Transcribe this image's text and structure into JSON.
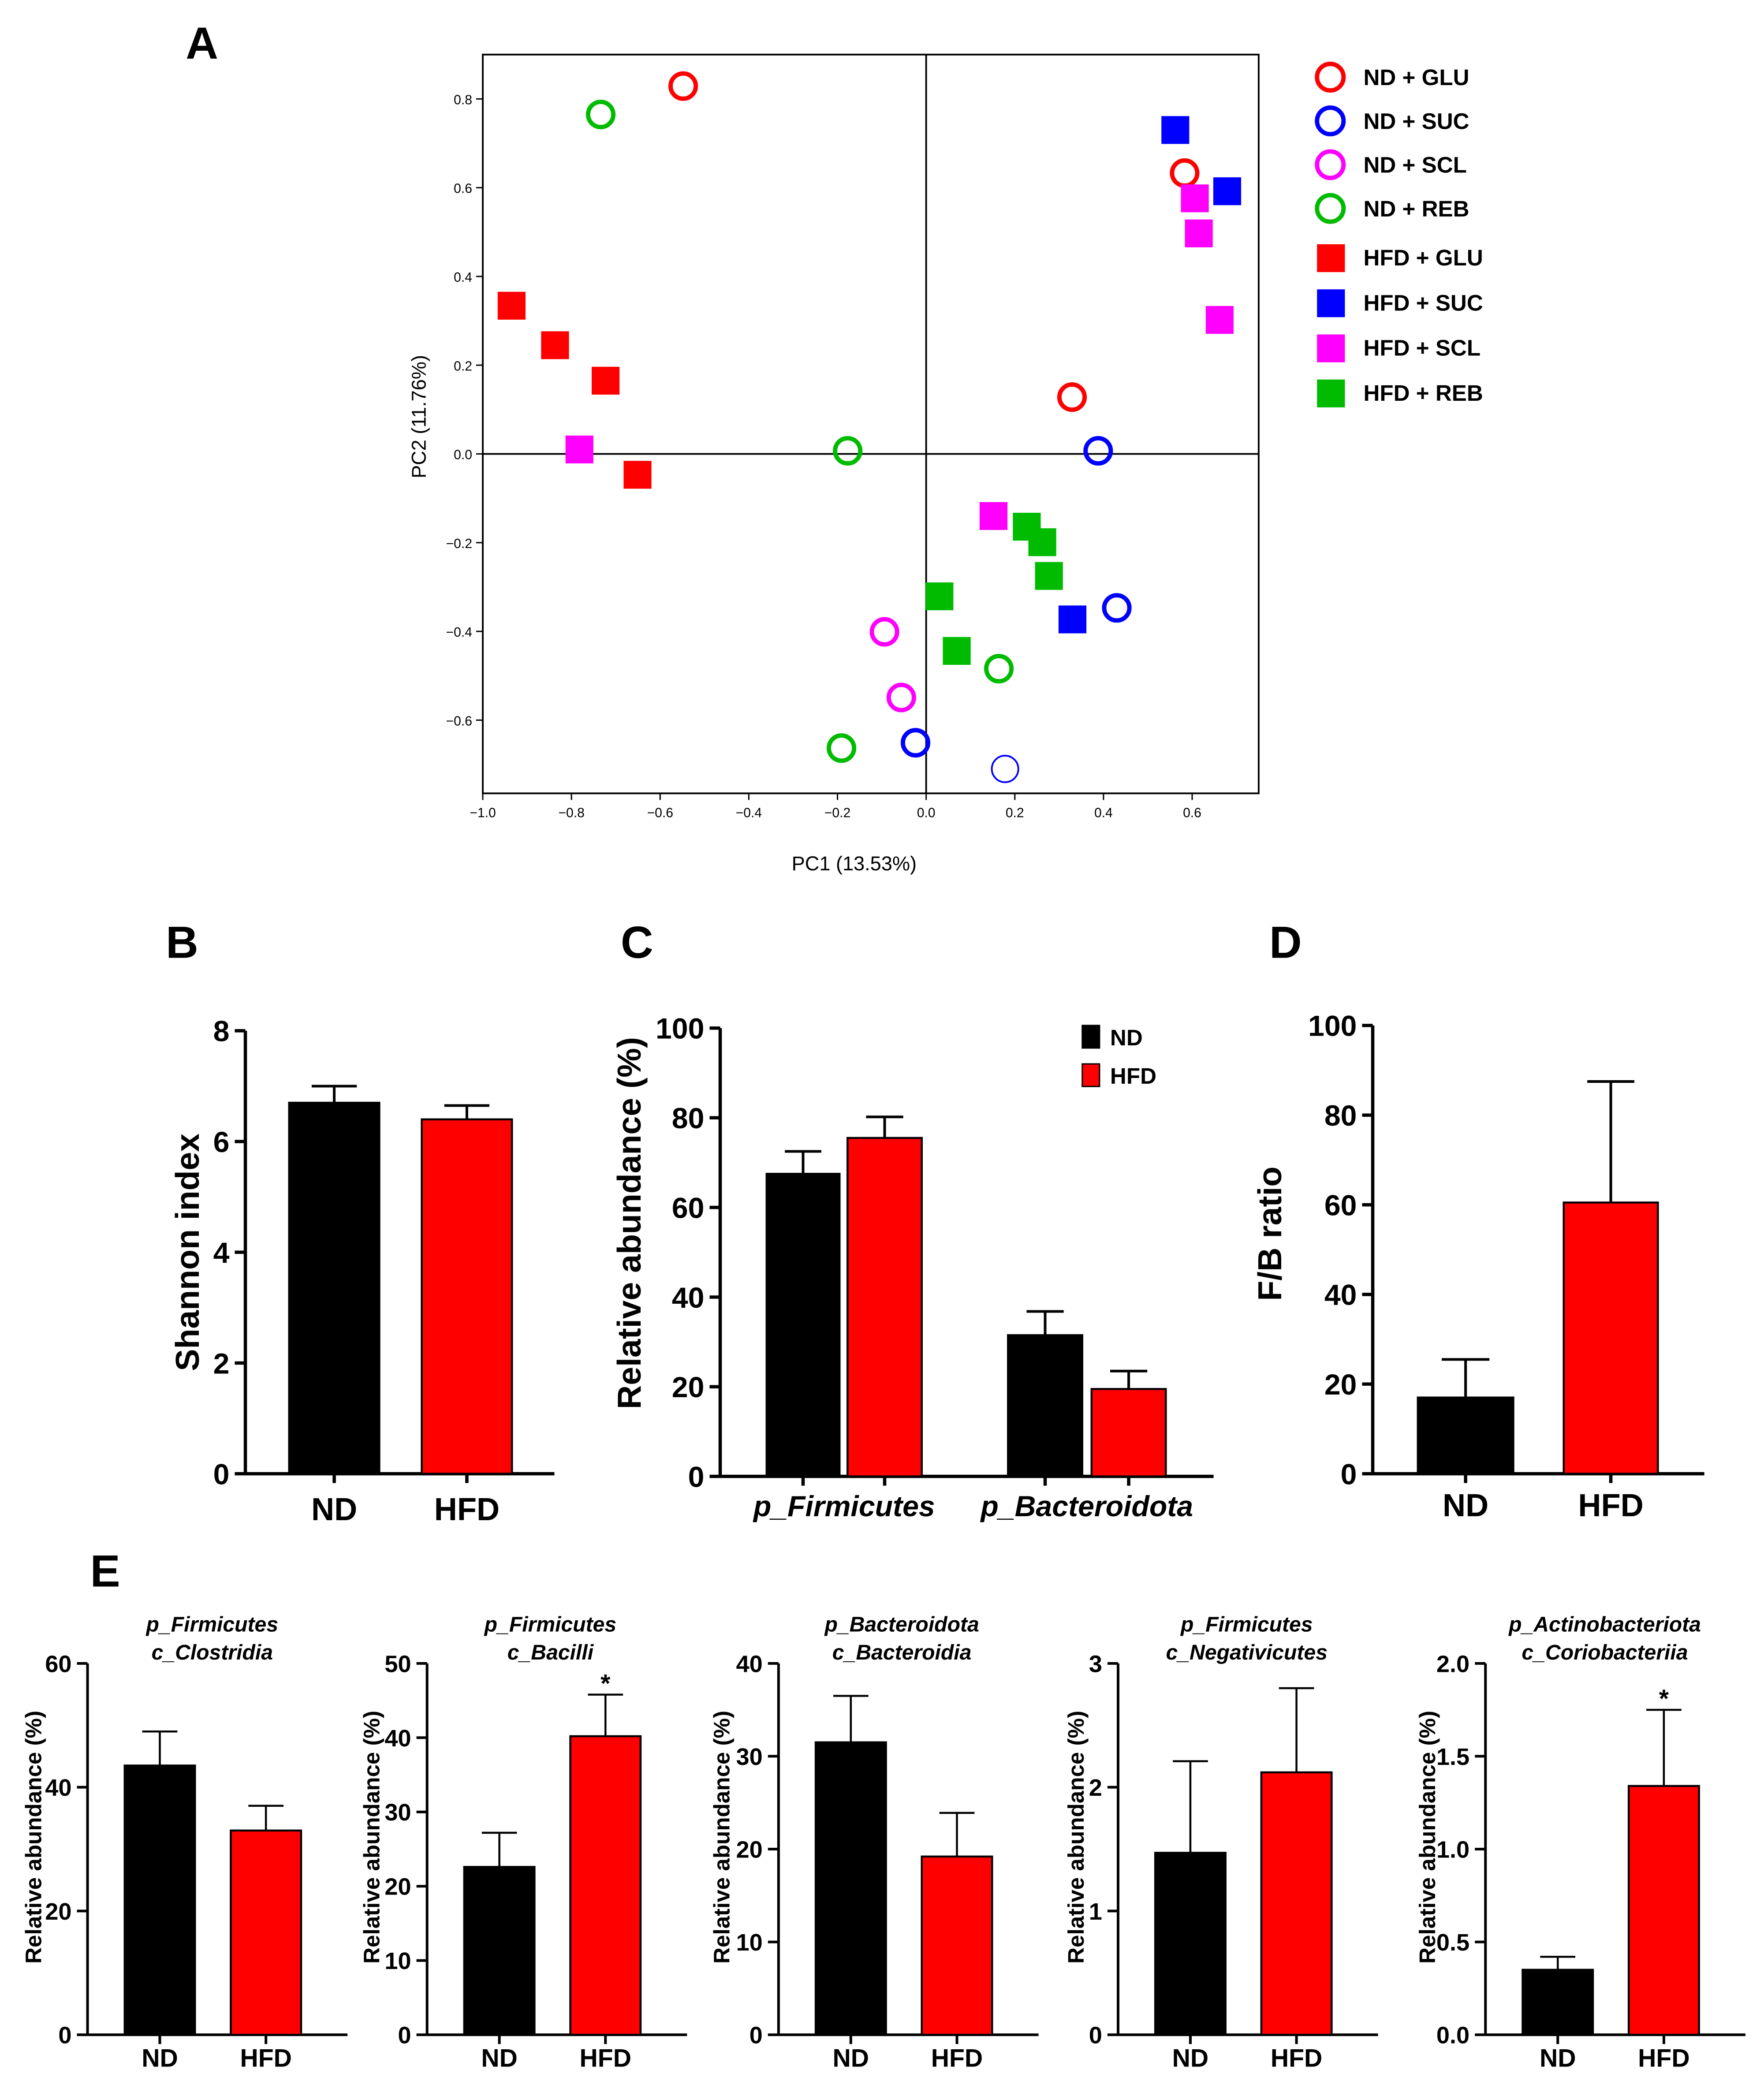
{
  "panel_letters": [
    "A",
    "B",
    "C",
    "D",
    "E"
  ],
  "chart_data": [
    {
      "panel": "A",
      "type": "scatter",
      "xlabel": "PC1 (13.53%)",
      "ylabel": "PC2 (11.76%)",
      "xlim": [
        -1.0,
        0.75
      ],
      "ylim": [
        -0.765,
        0.9
      ],
      "xticks": [
        "-1.0",
        "-0.8",
        "-0.6",
        "-0.4",
        "-0.2",
        "0.0",
        "0.2",
        "0.4",
        "0.6"
      ],
      "yticks": [
        "-0.6",
        "-0.4",
        "-0.2",
        "0.0",
        "0.2",
        "0.4",
        "0.6",
        "0.8"
      ],
      "legend": "right",
      "series": [
        {
          "name": "ND + GLU",
          "marker": "open-circle",
          "color": "#ff0000",
          "points": [
            [
              -0.548,
              0.829
            ],
            [
              0.583,
              0.633
            ],
            [
              0.329,
              0.128
            ]
          ]
        },
        {
          "name": "ND + SUC",
          "marker": "open-circle",
          "color": "#0000ff",
          "points": [
            [
              0.388,
              0.007
            ],
            [
              0.43,
              -0.347
            ],
            [
              -0.024,
              -0.651
            ],
            [
              0.178,
              -0.71
            ]
          ],
          "thin_index": 3
        },
        {
          "name": "ND + SCL",
          "marker": "open-circle",
          "color": "#ff00ff",
          "points": [
            [
              -0.094,
              -0.401
            ],
            [
              -0.056,
              -0.549
            ]
          ]
        },
        {
          "name": "ND + REB",
          "marker": "open-circle",
          "color": "#00bb00",
          "points": [
            [
              -0.734,
              0.765
            ],
            [
              -0.177,
              0.007
            ],
            [
              -0.191,
              -0.663
            ],
            [
              0.164,
              -0.484
            ]
          ]
        },
        {
          "name": "HFD + GLU",
          "marker": "square",
          "color": "#ff0000",
          "points": [
            [
              -0.935,
              0.334
            ],
            [
              -0.837,
              0.245
            ],
            [
              -0.723,
              0.165
            ],
            [
              -0.651,
              -0.047
            ]
          ]
        },
        {
          "name": "HFD + SUC",
          "marker": "square",
          "color": "#0000ff",
          "points": [
            [
              0.562,
              0.73
            ],
            [
              0.679,
              0.592
            ],
            [
              0.33,
              -0.373
            ]
          ]
        },
        {
          "name": "HFD + SCL",
          "marker": "square",
          "color": "#ff00ff",
          "points": [
            [
              0.606,
              0.576
            ],
            [
              0.615,
              0.497
            ],
            [
              0.662,
              0.302
            ],
            [
              -0.782,
              0.01
            ],
            [
              0.152,
              -0.14
            ]
          ]
        },
        {
          "name": "HFD + REB",
          "marker": "square",
          "color": "#00bb00",
          "points": [
            [
              0.227,
              -0.164
            ],
            [
              0.262,
              -0.199
            ],
            [
              0.277,
              -0.275
            ],
            [
              0.03,
              -0.321
            ],
            [
              0.069,
              -0.444
            ]
          ]
        }
      ]
    },
    {
      "panel": "B",
      "type": "bar",
      "ylabel": "Shannon index",
      "ylim": [
        0,
        8
      ],
      "yticks": [
        "0",
        "2",
        "4",
        "6",
        "8"
      ],
      "categories": [
        "ND",
        "HFD"
      ],
      "series": [
        {
          "name": "Shannon index",
          "values": [
            6.7,
            6.4
          ],
          "error_upper": [
            7.0,
            6.65
          ],
          "colors": [
            "#000000",
            "#ff0000"
          ]
        }
      ]
    },
    {
      "panel": "C",
      "type": "bar",
      "ylabel": "Relative abundance (%)",
      "ylim": [
        0,
        100
      ],
      "yticks": [
        "0",
        "20",
        "40",
        "60",
        "80",
        "100"
      ],
      "categories": [
        "p_Firmicutes",
        "p_Bacteroidota"
      ],
      "legend": "top-right",
      "series": [
        {
          "name": "ND",
          "color": "#000000",
          "values": [
            67.5,
            31.5
          ],
          "error_upper": [
            72.5,
            36.8
          ]
        },
        {
          "name": "HFD",
          "color": "#ff0000",
          "values": [
            75.5,
            19.5
          ],
          "error_upper": [
            80.2,
            23.5
          ]
        }
      ]
    },
    {
      "panel": "D",
      "type": "bar",
      "ylabel": "F/B ratio",
      "ylim": [
        0,
        100
      ],
      "yticks": [
        "0",
        "20",
        "40",
        "60",
        "80",
        "100"
      ],
      "categories": [
        "ND",
        "HFD"
      ],
      "series": [
        {
          "name": "F/B ratio",
          "values": [
            17.0,
            60.5
          ],
          "error_upper": [
            25.5,
            87.5
          ],
          "colors": [
            "#000000",
            "#ff0000"
          ]
        }
      ]
    },
    {
      "panel": "E1",
      "type": "bar",
      "title": [
        "p_Firmicutes",
        "c_Clostridia"
      ],
      "ylabel": "Relative abundance (%)",
      "ylim": [
        0,
        60
      ],
      "yticks": [
        "0",
        "20",
        "40",
        "60"
      ],
      "categories": [
        "ND",
        "HFD"
      ],
      "values": [
        43.5,
        33.0
      ],
      "error_upper": [
        49.0,
        37.0
      ],
      "significance": [
        "",
        ""
      ],
      "colors": [
        "#000000",
        "#ff0000"
      ]
    },
    {
      "panel": "E2",
      "type": "bar",
      "title": [
        "p_Firmicutes",
        "c_Bacilli"
      ],
      "ylabel": "Relative abundance (%)",
      "ylim": [
        0,
        50
      ],
      "yticks": [
        "0",
        "10",
        "20",
        "30",
        "40",
        "50"
      ],
      "categories": [
        "ND",
        "HFD"
      ],
      "values": [
        22.6,
        40.2
      ],
      "error_upper": [
        27.2,
        45.8
      ],
      "significance": [
        "",
        "*"
      ],
      "colors": [
        "#000000",
        "#ff0000"
      ]
    },
    {
      "panel": "E3",
      "type": "bar",
      "title": [
        "p_Bacteroidota",
        "c_Bacteroidia"
      ],
      "ylabel": "Relative abundance (%)",
      "ylim": [
        0,
        40
      ],
      "yticks": [
        "0",
        "10",
        "20",
        "30",
        "40"
      ],
      "categories": [
        "ND",
        "HFD"
      ],
      "values": [
        31.5,
        19.2
      ],
      "error_upper": [
        36.5,
        23.9
      ],
      "significance": [
        "",
        ""
      ],
      "colors": [
        "#000000",
        "#ff0000"
      ]
    },
    {
      "panel": "E4",
      "type": "bar",
      "title": [
        "p_Firmicutes",
        "c_Negativicutes"
      ],
      "ylabel": "Relative abundance (%)",
      "ylim": [
        0,
        3
      ],
      "yticks": [
        "0",
        "1",
        "2",
        "3"
      ],
      "categories": [
        "ND",
        "HFD"
      ],
      "values": [
        1.47,
        2.12
      ],
      "error_upper": [
        2.21,
        2.8
      ],
      "significance": [
        "",
        ""
      ],
      "colors": [
        "#000000",
        "#ff0000"
      ]
    },
    {
      "panel": "E5",
      "type": "bar",
      "title": [
        "p_Actinobacteriota",
        "c_Coriobacteriia"
      ],
      "ylabel": "Relative abundance (%)",
      "ylim": [
        0,
        2.0
      ],
      "yticks": [
        "0.0",
        "0.5",
        "1.0",
        "1.5",
        "2.0"
      ],
      "categories": [
        "ND",
        "HFD"
      ],
      "values": [
        0.35,
        1.34
      ],
      "error_upper": [
        0.42,
        1.75
      ],
      "significance": [
        "",
        "*"
      ],
      "colors": [
        "#000000",
        "#ff0000"
      ]
    }
  ]
}
